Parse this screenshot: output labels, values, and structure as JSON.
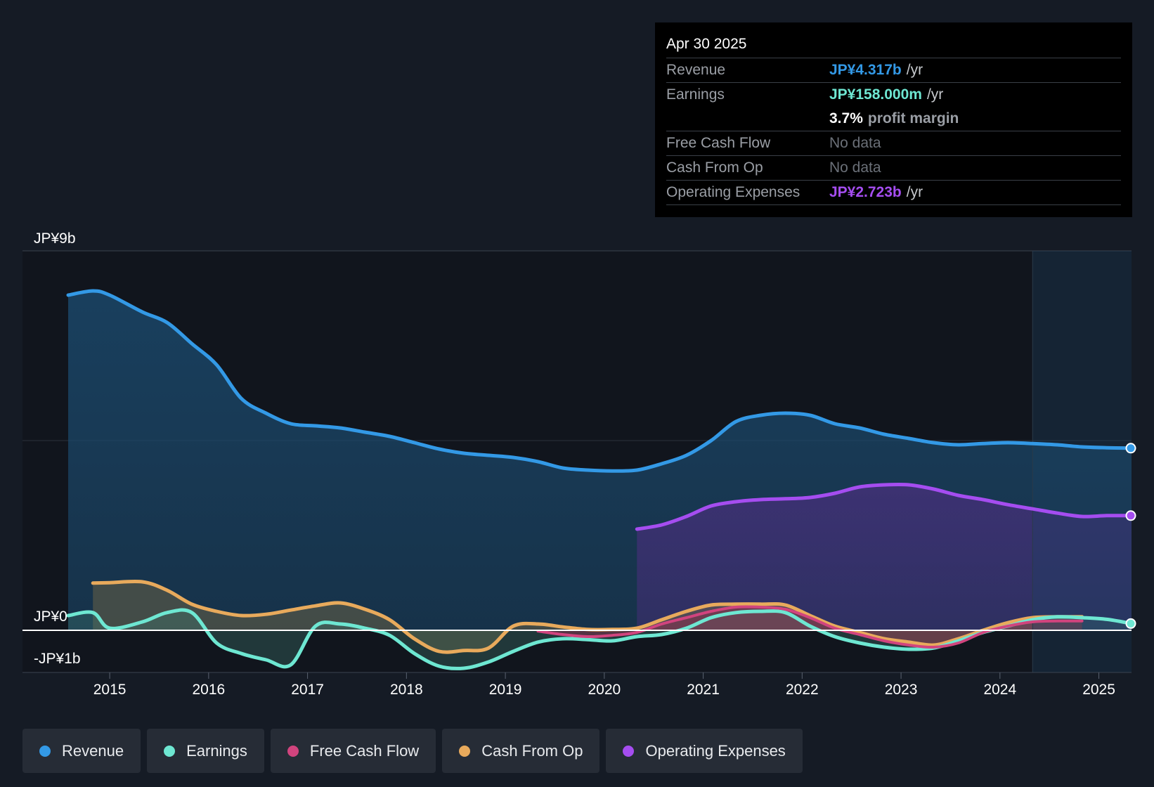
{
  "tooltip": {
    "date": "Apr 30 2025",
    "rows": {
      "revenue": {
        "label": "Revenue",
        "value": "JP¥4.317b",
        "unit": "/yr"
      },
      "earnings": {
        "label": "Earnings",
        "value": "JP¥158.000m",
        "unit": "/yr"
      },
      "margin": {
        "value": "3.7%",
        "unit": "profit margin"
      },
      "fcf": {
        "label": "Free Cash Flow",
        "value": "No data"
      },
      "cfo": {
        "label": "Cash From Op",
        "value": "No data"
      },
      "opex": {
        "label": "Operating Expenses",
        "value": "JP¥2.723b",
        "unit": "/yr"
      }
    }
  },
  "legend": {
    "revenue": "Revenue",
    "earnings": "Earnings",
    "fcf": "Free Cash Flow",
    "cfo": "Cash From Op",
    "opex": "Operating Expenses"
  },
  "colors": {
    "revenue": "#3399e6",
    "earnings": "#6ee7d2",
    "fcf": "#d1447e",
    "cfo": "#e8aa5c",
    "opex": "#a54df0",
    "background": "#151b25"
  },
  "chart_data": {
    "type": "line",
    "title": "",
    "y_tick_labels": [
      "JP¥9b",
      "JP¥0",
      "-JP¥1b"
    ],
    "ylim": [
      -1,
      9
    ],
    "xlim": [
      2014.58,
      2025.33
    ],
    "x_ticks": [
      2015,
      2016,
      2017,
      2018,
      2019,
      2020,
      2021,
      2022,
      2023,
      2024,
      2025
    ],
    "x_tick_labels": [
      "2015",
      "2016",
      "2017",
      "2018",
      "2019",
      "2020",
      "2021",
      "2022",
      "2023",
      "2024",
      "2025"
    ],
    "forecast_start": 2024.33,
    "series": [
      {
        "key": "revenue",
        "name": "Revenue",
        "fill": true,
        "x": [
          2014.58,
          2014.83,
          2015.0,
          2015.33,
          2015.58,
          2015.83,
          2016.08,
          2016.33,
          2016.58,
          2016.83,
          2017.08,
          2017.33,
          2017.58,
          2017.83,
          2018.08,
          2018.33,
          2018.58,
          2018.83,
          2019.08,
          2019.33,
          2019.58,
          2019.83,
          2020.08,
          2020.33,
          2020.58,
          2020.83,
          2021.08,
          2021.33,
          2021.58,
          2021.83,
          2022.08,
          2022.33,
          2022.58,
          2022.83,
          2023.08,
          2023.33,
          2023.58,
          2023.83,
          2024.08,
          2024.33,
          2024.58,
          2024.83,
          2025.08,
          2025.33
        ],
        "values": [
          7.95,
          8.05,
          7.95,
          7.55,
          7.3,
          6.8,
          6.3,
          5.5,
          5.15,
          4.9,
          4.85,
          4.8,
          4.7,
          4.6,
          4.45,
          4.3,
          4.2,
          4.15,
          4.1,
          4.0,
          3.85,
          3.8,
          3.78,
          3.8,
          3.95,
          4.15,
          4.5,
          4.95,
          5.1,
          5.15,
          5.1,
          4.9,
          4.8,
          4.65,
          4.55,
          4.45,
          4.4,
          4.43,
          4.45,
          4.43,
          4.4,
          4.35,
          4.33,
          4.32
        ]
      },
      {
        "key": "opex",
        "name": "Operating Expenses",
        "fill": true,
        "x": [
          2020.33,
          2020.58,
          2020.83,
          2021.08,
          2021.33,
          2021.58,
          2021.83,
          2022.08,
          2022.33,
          2022.58,
          2022.83,
          2023.08,
          2023.33,
          2023.58,
          2023.83,
          2024.08,
          2024.33,
          2024.58,
          2024.83,
          2025.08,
          2025.33
        ],
        "values": [
          2.4,
          2.5,
          2.7,
          2.95,
          3.05,
          3.1,
          3.12,
          3.15,
          3.25,
          3.4,
          3.45,
          3.45,
          3.35,
          3.2,
          3.1,
          2.98,
          2.88,
          2.78,
          2.7,
          2.72,
          2.72
        ]
      },
      {
        "key": "cfo",
        "name": "Cash From Op",
        "fill": true,
        "x": [
          2014.83,
          2015.0,
          2015.33,
          2015.58,
          2015.83,
          2016.08,
          2016.33,
          2016.58,
          2016.83,
          2017.08,
          2017.33,
          2017.58,
          2017.83,
          2018.08,
          2018.33,
          2018.58,
          2018.83,
          2019.08,
          2019.33,
          2019.58,
          2019.83,
          2020.08,
          2020.33,
          2020.58,
          2020.83,
          2021.08,
          2021.33,
          2021.58,
          2021.83,
          2022.08,
          2022.33,
          2022.58,
          2022.83,
          2023.08,
          2023.33,
          2023.58,
          2023.83,
          2024.08,
          2024.33,
          2024.58,
          2024.83
        ],
        "values": [
          1.12,
          1.13,
          1.15,
          0.95,
          0.62,
          0.45,
          0.35,
          0.38,
          0.48,
          0.58,
          0.65,
          0.5,
          0.25,
          -0.2,
          -0.5,
          -0.48,
          -0.42,
          0.1,
          0.15,
          0.08,
          0.02,
          0.02,
          0.05,
          0.25,
          0.45,
          0.6,
          0.62,
          0.62,
          0.6,
          0.35,
          0.1,
          -0.05,
          -0.2,
          -0.28,
          -0.35,
          -0.2,
          0.0,
          0.18,
          0.3,
          0.32,
          0.32
        ]
      },
      {
        "key": "earnings",
        "name": "Earnings",
        "fill": true,
        "x": [
          2014.58,
          2014.83,
          2015.0,
          2015.33,
          2015.58,
          2015.83,
          2016.08,
          2016.33,
          2016.58,
          2016.83,
          2017.08,
          2017.33,
          2017.58,
          2017.83,
          2018.08,
          2018.33,
          2018.58,
          2018.83,
          2019.08,
          2019.33,
          2019.58,
          2019.83,
          2020.08,
          2020.33,
          2020.58,
          2020.83,
          2021.08,
          2021.33,
          2021.58,
          2021.83,
          2022.08,
          2022.33,
          2022.58,
          2022.83,
          2023.08,
          2023.33,
          2023.58,
          2023.83,
          2024.08,
          2024.33,
          2024.58,
          2024.83,
          2025.08,
          2025.33
        ],
        "values": [
          0.35,
          0.42,
          0.05,
          0.2,
          0.42,
          0.42,
          -0.3,
          -0.55,
          -0.7,
          -0.82,
          0.1,
          0.15,
          0.05,
          -0.12,
          -0.55,
          -0.85,
          -0.9,
          -0.75,
          -0.5,
          -0.28,
          -0.2,
          -0.22,
          -0.25,
          -0.15,
          -0.1,
          0.05,
          0.3,
          0.42,
          0.45,
          0.42,
          0.1,
          -0.15,
          -0.3,
          -0.4,
          -0.45,
          -0.42,
          -0.25,
          -0.05,
          0.1,
          0.25,
          0.32,
          0.3,
          0.26,
          0.16
        ]
      },
      {
        "key": "fcf",
        "name": "Free Cash Flow",
        "fill": true,
        "x": [
          2019.33,
          2019.58,
          2019.83,
          2020.08,
          2020.33,
          2020.58,
          2020.83,
          2021.08,
          2021.33,
          2021.58,
          2021.83,
          2022.08,
          2022.33,
          2022.58,
          2022.83,
          2023.08,
          2023.33,
          2023.58,
          2023.83,
          2024.08,
          2024.33,
          2024.58,
          2024.83
        ],
        "values": [
          -0.02,
          -0.1,
          -0.15,
          -0.12,
          -0.05,
          0.15,
          0.3,
          0.45,
          0.55,
          0.55,
          0.5,
          0.3,
          0.05,
          -0.1,
          -0.25,
          -0.35,
          -0.4,
          -0.3,
          -0.05,
          0.1,
          0.2,
          0.22,
          0.22
        ]
      }
    ]
  }
}
